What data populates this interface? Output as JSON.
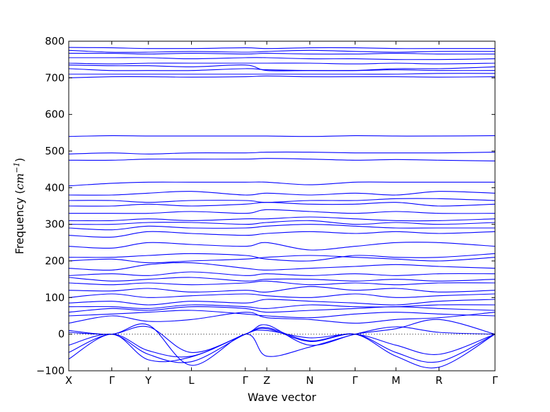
{
  "chart_data": {
    "type": "line",
    "title": "",
    "xlabel": "Wave vector",
    "ylabel": "Frequency",
    "ylabel_unit": "cm",
    "ylabel_unit_exp": "−1",
    "ylim": [
      -100,
      800
    ],
    "yticks": [
      -100,
      0,
      100,
      200,
      300,
      400,
      500,
      600,
      700,
      800
    ],
    "grid": false,
    "legend": "none",
    "line_color": "#0000ff",
    "zero_line": {
      "y": 0,
      "style": "dotted",
      "color": "#000000"
    },
    "high_symmetry_points": [
      {
        "label": "X",
        "x": 0.0
      },
      {
        "label": "Γ",
        "x": 1.0
      },
      {
        "label": "Y",
        "x": 1.85
      },
      {
        "label": "L",
        "x": 2.85
      },
      {
        "label": "Γ",
        "x": 4.1
      },
      {
        "label": "Z",
        "x": 4.6
      },
      {
        "label": "N",
        "x": 5.6
      },
      {
        "label": "Γ",
        "x": 6.65
      },
      {
        "label": "M",
        "x": 7.6
      },
      {
        "label": "R",
        "x": 8.6
      },
      {
        "label": "Γ",
        "x": 9.9
      }
    ],
    "series": [
      {
        "values": [
          -30,
          0,
          -55,
          -75,
          0,
          10,
          -10,
          0,
          -30,
          -55,
          0
        ]
      },
      {
        "values": [
          -50,
          0,
          -45,
          -60,
          0,
          15,
          -20,
          0,
          -50,
          -75,
          0
        ]
      },
      {
        "values": [
          -68,
          0,
          -70,
          -62,
          0,
          18,
          -18,
          0,
          -60,
          -90,
          0
        ]
      },
      {
        "values": [
          10,
          0,
          25,
          -85,
          0,
          -60,
          -35,
          0,
          20,
          5,
          0
        ]
      },
      {
        "values": [
          5,
          0,
          20,
          -50,
          0,
          25,
          -30,
          0,
          15,
          40,
          0
        ]
      },
      {
        "values": [
          30,
          50,
          35,
          40,
          60,
          45,
          40,
          30,
          40,
          45,
          60
        ]
      },
      {
        "values": [
          50,
          55,
          60,
          65,
          55,
          50,
          45,
          55,
          60,
          55,
          50
        ]
      },
      {
        "values": [
          60,
          70,
          65,
          75,
          70,
          60,
          65,
          70,
          75,
          70,
          65
        ]
      },
      {
        "values": [
          75,
          75,
          70,
          80,
          75,
          70,
          80,
          75,
          75,
          80,
          80
        ]
      },
      {
        "values": [
          85,
          90,
          80,
          90,
          85,
          95,
          90,
          85,
          80,
          90,
          95
        ]
      },
      {
        "values": [
          100,
          110,
          100,
          105,
          110,
          105,
          100,
          110,
          100,
          105,
          110
        ]
      },
      {
        "values": [
          120,
          118,
          125,
          115,
          120,
          115,
          130,
          120,
          125,
          115,
          120
        ]
      },
      {
        "values": [
          140,
          135,
          140,
          135,
          140,
          145,
          135,
          140,
          135,
          140,
          140
        ]
      },
      {
        "values": [
          155,
          145,
          150,
          155,
          145,
          150,
          150,
          145,
          150,
          145,
          150
        ]
      },
      {
        "values": [
          160,
          165,
          160,
          170,
          160,
          165,
          160,
          165,
          160,
          165,
          165
        ]
      },
      {
        "values": [
          180,
          175,
          190,
          195,
          180,
          175,
          180,
          185,
          190,
          185,
          180
        ]
      },
      {
        "values": [
          200,
          205,
          195,
          200,
          205,
          210,
          215,
          210,
          205,
          200,
          210
        ]
      },
      {
        "values": [
          210,
          210,
          215,
          220,
          215,
          205,
          200,
          215,
          210,
          210,
          220
        ]
      },
      {
        "values": [
          240,
          235,
          250,
          245,
          240,
          250,
          230,
          240,
          250,
          250,
          240
        ]
      },
      {
        "values": [
          270,
          265,
          280,
          275,
          270,
          275,
          280,
          275,
          280,
          275,
          280
        ]
      },
      {
        "values": [
          290,
          285,
          295,
          290,
          290,
          295,
          300,
          295,
          290,
          290,
          290
        ]
      },
      {
        "values": [
          300,
          300,
          305,
          305,
          300,
          305,
          310,
          300,
          305,
          300,
          305
        ]
      },
      {
        "values": [
          310,
          310,
          315,
          310,
          315,
          315,
          320,
          315,
          310,
          310,
          315
        ]
      },
      {
        "values": [
          330,
          330,
          330,
          335,
          330,
          340,
          335,
          330,
          335,
          330,
          330
        ]
      },
      {
        "values": [
          350,
          350,
          355,
          350,
          355,
          360,
          355,
          355,
          360,
          350,
          355
        ]
      },
      {
        "values": [
          365,
          365,
          360,
          365,
          365,
          360,
          365,
          365,
          370,
          370,
          365
        ]
      },
      {
        "values": [
          380,
          380,
          385,
          390,
          380,
          385,
          380,
          385,
          380,
          390,
          385
        ]
      },
      {
        "values": [
          405,
          412,
          415,
          415,
          415,
          415,
          408,
          415,
          415,
          415,
          415
        ]
      },
      {
        "values": [
          475,
          475,
          478,
          478,
          478,
          480,
          478,
          475,
          477,
          475,
          473
        ]
      },
      {
        "values": [
          492,
          495,
          492,
          495,
          495,
          497,
          497,
          495,
          495,
          495,
          497
        ]
      },
      {
        "values": [
          540,
          542,
          541,
          541,
          541,
          541,
          540,
          542,
          541,
          541,
          542
        ]
      },
      {
        "values": [
          700,
          703,
          703,
          702,
          703,
          705,
          703,
          703,
          703,
          702,
          703
        ]
      },
      {
        "values": [
          710,
          710,
          710,
          710,
          710,
          710,
          710,
          710,
          710,
          712,
          712
        ]
      },
      {
        "values": [
          725,
          720,
          720,
          720,
          725,
          722,
          720,
          720,
          722,
          720,
          720
        ]
      },
      {
        "values": [
          735,
          733,
          733,
          730,
          735,
          720,
          720,
          720,
          725,
          725,
          730
        ]
      },
      {
        "values": [
          740,
          738,
          740,
          740,
          740,
          740,
          740,
          738,
          740,
          738,
          740
        ]
      },
      {
        "values": [
          755,
          755,
          755,
          752,
          755,
          755,
          752,
          752,
          750,
          750,
          752
        ]
      },
      {
        "values": [
          767,
          767,
          765,
          767,
          765,
          767,
          765,
          765,
          767,
          765,
          765
        ]
      },
      {
        "values": [
          775,
          770,
          770,
          772,
          770,
          772,
          775,
          772,
          770,
          772,
          772
        ]
      },
      {
        "values": [
          783,
          782,
          780,
          780,
          782,
          780,
          782,
          782,
          780,
          780,
          780
        ]
      }
    ]
  }
}
